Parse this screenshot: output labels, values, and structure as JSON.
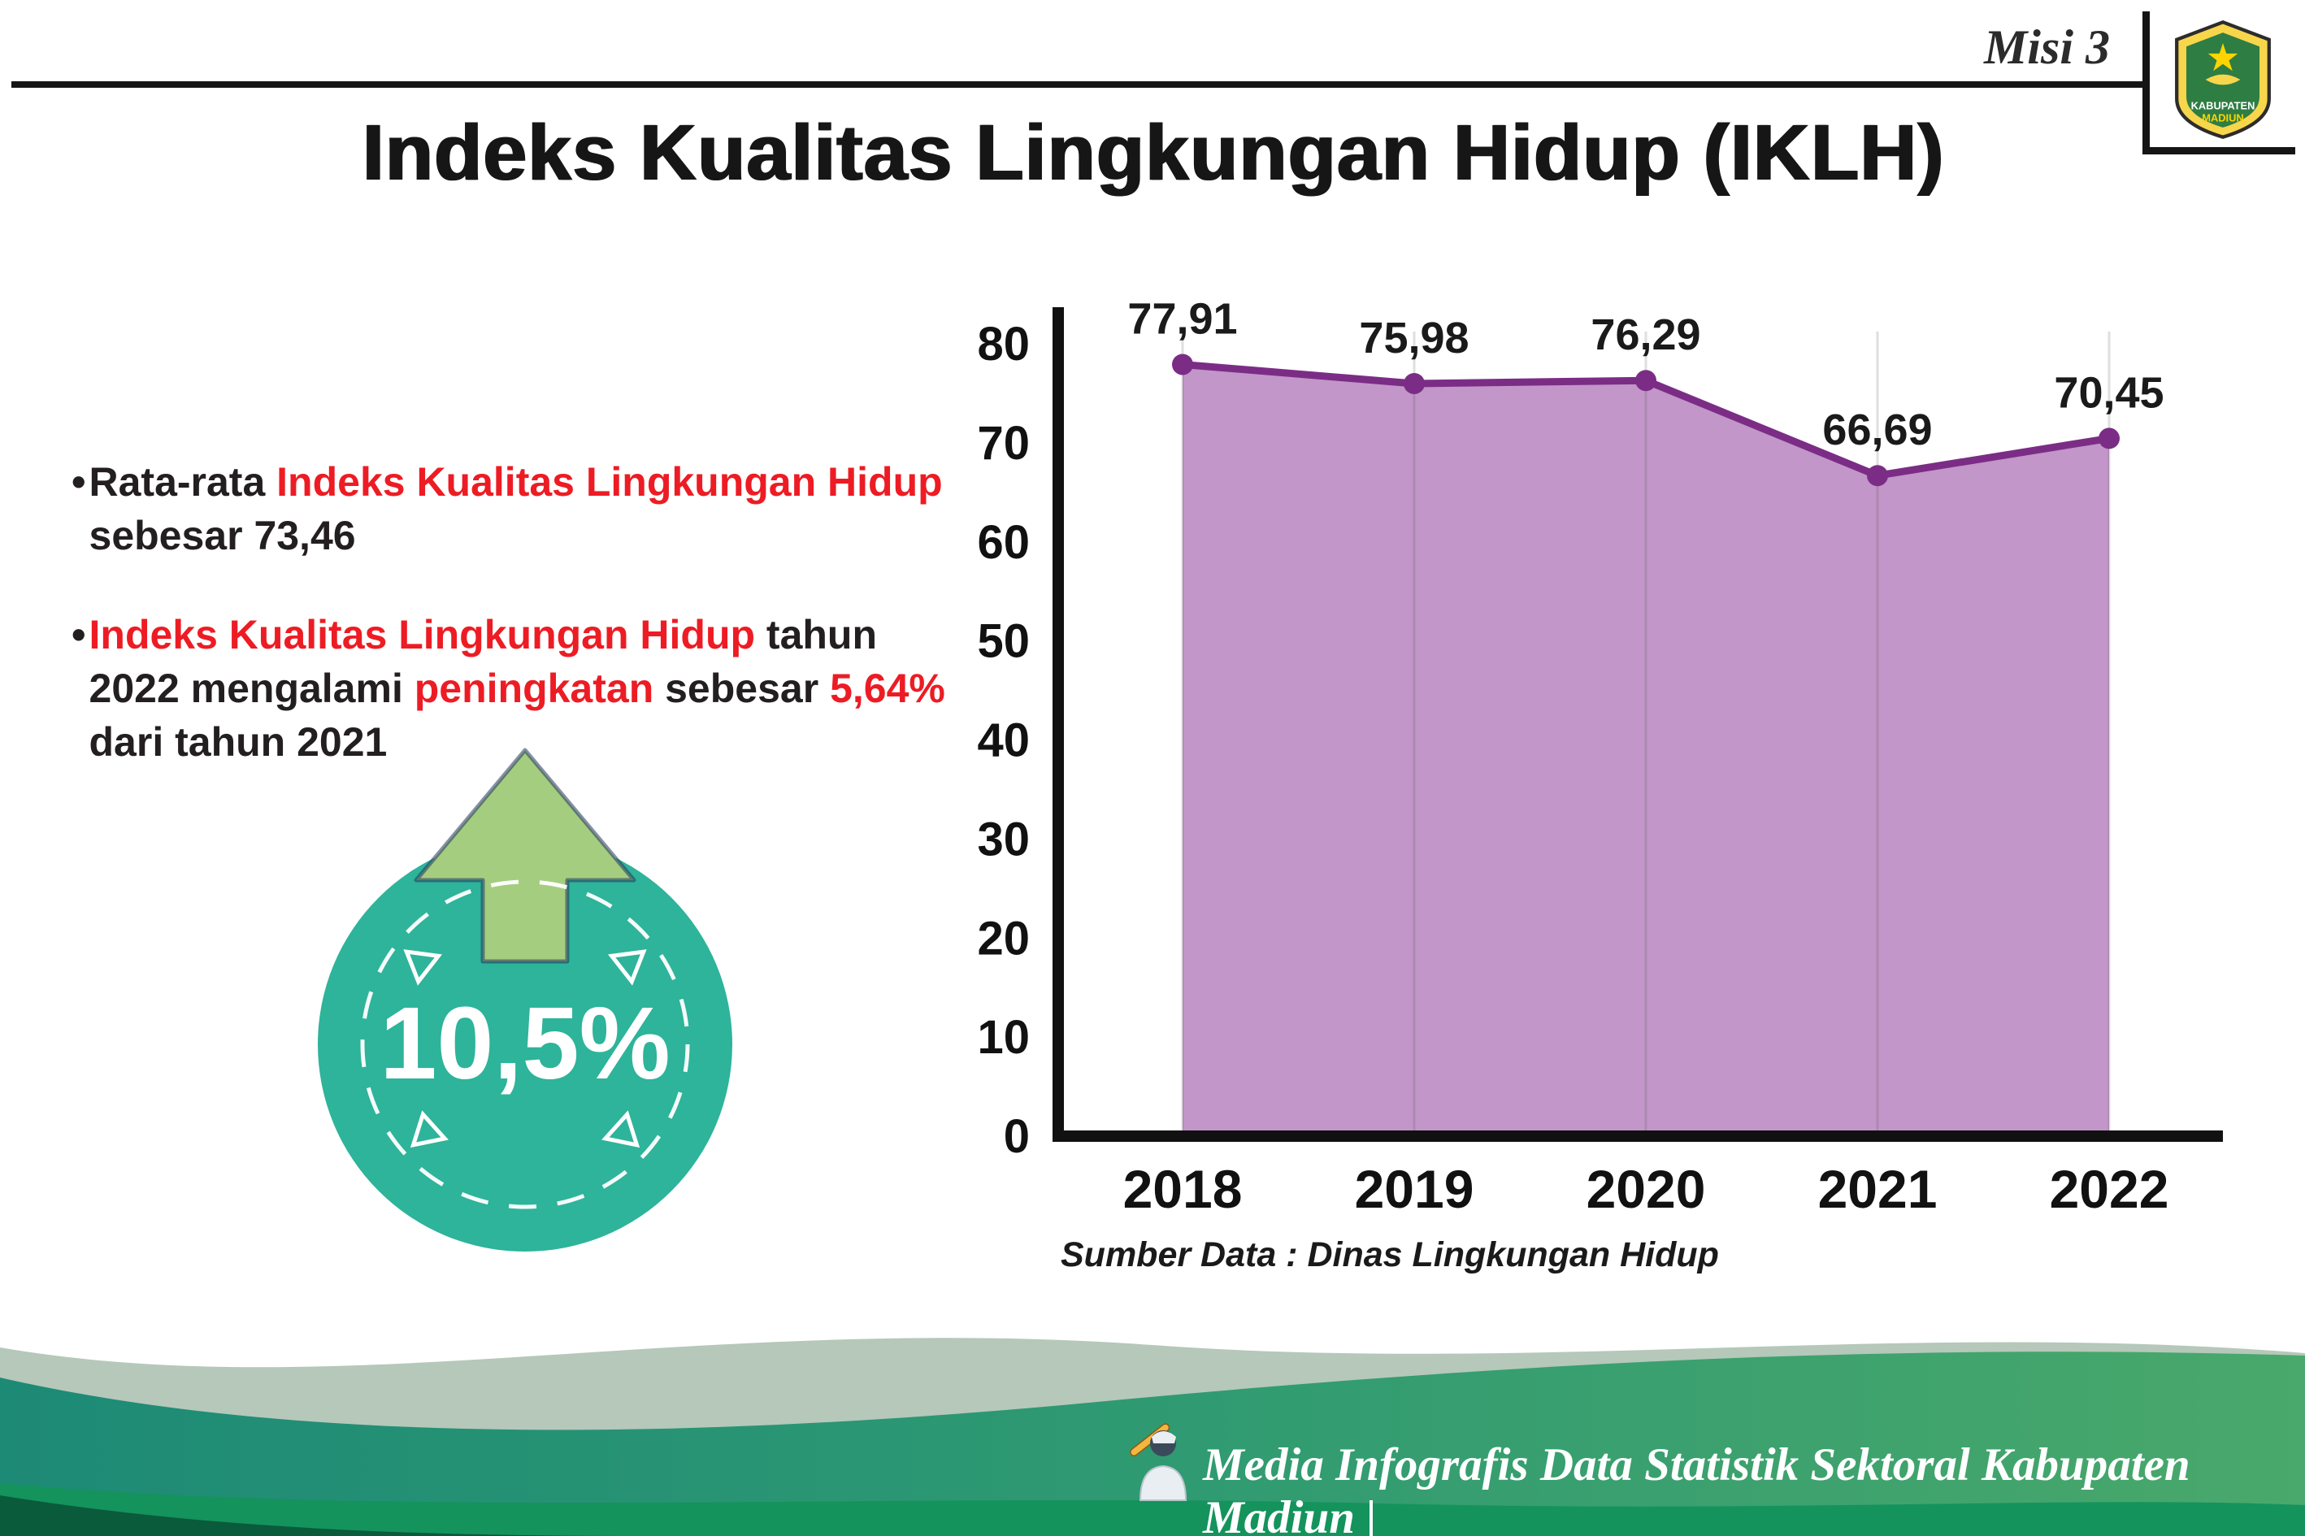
{
  "page": {
    "misi_label": "Misi 3",
    "title": "Indeks Kualitas Lingkungan Hidup (IKLH)"
  },
  "colors": {
    "accent_red": "#ed1c24",
    "text_dark": "#231f20",
    "line_purple": "#7b2d86",
    "area_purple": "#bf90c5",
    "badge_teal": "#2db49a",
    "arrow_green": "#a5cd7f",
    "axis_black": "#111111"
  },
  "bullets": [
    {
      "segments": [
        {
          "text": "Rata-rata ",
          "style": "dark"
        },
        {
          "text": "Indeks Kualitas Lingkungan Hidup",
          "style": "red"
        },
        {
          "text": " sebesar 73,46",
          "style": "dark"
        }
      ]
    },
    {
      "segments": [
        {
          "text": "Indeks Kualitas Lingkungan Hidup",
          "style": "red"
        },
        {
          "text": " tahun 2022 mengalami ",
          "style": "dark"
        },
        {
          "text": "peningkatan",
          "style": "red"
        },
        {
          "text": " sebesar ",
          "style": "dark"
        },
        {
          "text": "5,64%",
          "style": "red"
        },
        {
          "text": " dari tahun 2021",
          "style": "dark"
        }
      ]
    }
  ],
  "badge": {
    "value": "10,5%"
  },
  "chart_data": {
    "type": "area",
    "categories": [
      "2018",
      "2019",
      "2020",
      "2021",
      "2022"
    ],
    "values": [
      77.91,
      75.98,
      76.29,
      66.69,
      70.45
    ],
    "value_labels": [
      "77,91",
      "75,98",
      "76,29",
      "66,69",
      "70,45"
    ],
    "title": "",
    "xlabel": "",
    "ylabel": "",
    "ylim": [
      0,
      80
    ],
    "yticks": [
      0,
      10,
      20,
      30,
      40,
      50,
      60,
      70,
      80
    ],
    "grid": "vertical",
    "legend": "none"
  },
  "source": {
    "label": "Sumber Data : Dinas Lingkungan Hidup"
  },
  "footer": {
    "text": "Media Infografis Data Statistik Sektoral Kabupaten Madiun |"
  },
  "logo": {
    "text_top": "KABUPATEN",
    "text_bottom": "MADIUN"
  }
}
